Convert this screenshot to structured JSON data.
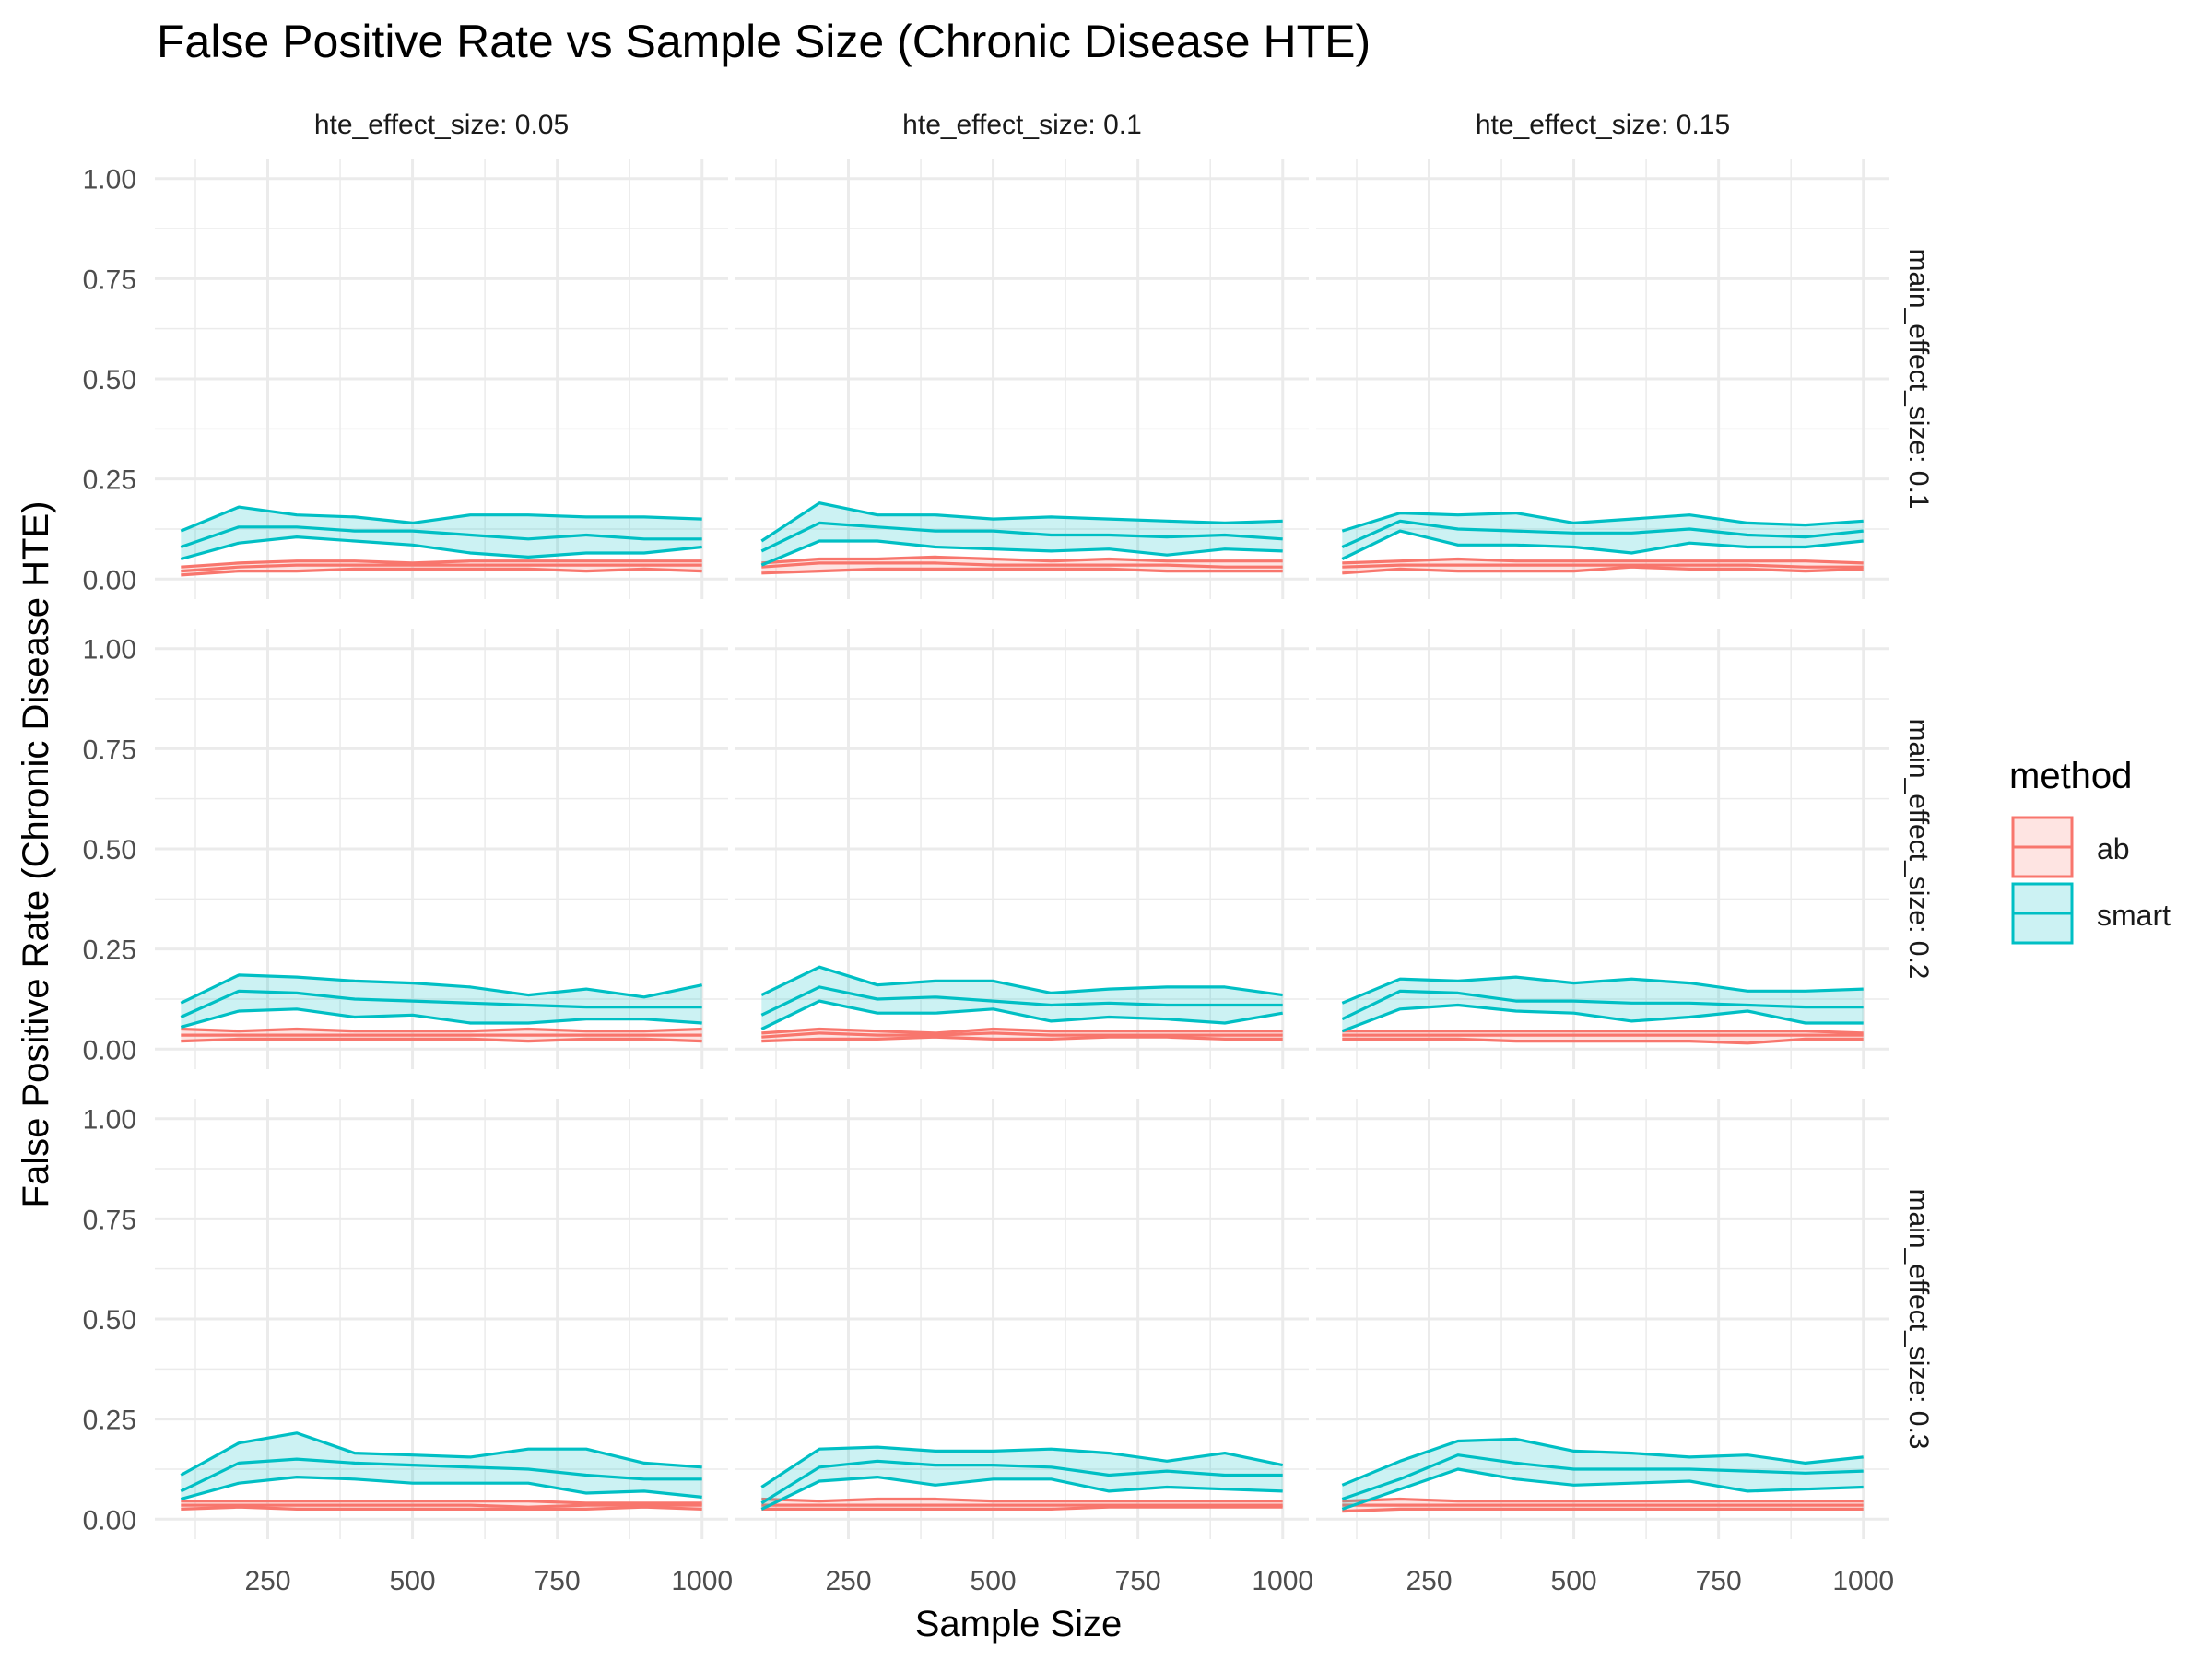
{
  "chart_data": {
    "type": "line",
    "title": "False Positive Rate vs Sample Size (Chronic Disease HTE)",
    "xlabel": "Sample Size",
    "ylabel": "False Positive Rate (Chronic Disease HTE)",
    "xlim": [
      55,
      1045
    ],
    "ylim": [
      -0.05,
      1.05
    ],
    "x_ticks": [
      250,
      500,
      750,
      1000
    ],
    "x_tick_labels": [
      "250",
      "500",
      "750",
      "1000"
    ],
    "y_ticks": [
      0,
      0.25,
      0.5,
      0.75,
      1
    ],
    "y_tick_labels": [
      "0.00",
      "0.25",
      "0.50",
      "0.75",
      "1.00"
    ],
    "grid": true,
    "legend": {
      "title": "method",
      "position": "right",
      "entries": [
        {
          "name": "ab",
          "color": "#F8766D"
        },
        {
          "name": "smart",
          "color": "#00BFC4"
        }
      ]
    },
    "col_facets": [
      "hte_effect_size: 0.05",
      "hte_effect_size: 0.1",
      "hte_effect_size: 0.15"
    ],
    "row_facets": [
      "main_effect_size: 0.1",
      "main_effect_size: 0.2",
      "main_effect_size: 0.3"
    ],
    "x": [
      100,
      200,
      300,
      400,
      500,
      600,
      700,
      800,
      900,
      1000
    ],
    "panels": [
      {
        "row": 0,
        "col": 0,
        "series": [
          {
            "name": "smart",
            "upper": [
              0.12,
              0.18,
              0.16,
              0.155,
              0.14,
              0.16,
              0.16,
              0.155,
              0.155,
              0.15
            ],
            "mean": [
              0.08,
              0.13,
              0.13,
              0.12,
              0.12,
              0.11,
              0.1,
              0.11,
              0.1,
              0.1
            ],
            "lower": [
              0.05,
              0.09,
              0.105,
              0.095,
              0.085,
              0.065,
              0.055,
              0.065,
              0.065,
              0.08
            ]
          },
          {
            "name": "ab",
            "upper": [
              0.03,
              0.04,
              0.045,
              0.045,
              0.04,
              0.045,
              0.045,
              0.045,
              0.045,
              0.045
            ],
            "mean": [
              0.02,
              0.03,
              0.035,
              0.035,
              0.035,
              0.035,
              0.035,
              0.035,
              0.035,
              0.035
            ],
            "lower": [
              0.01,
              0.02,
              0.02,
              0.025,
              0.025,
              0.025,
              0.025,
              0.02,
              0.025,
              0.02
            ]
          }
        ]
      },
      {
        "row": 0,
        "col": 1,
        "series": [
          {
            "name": "smart",
            "upper": [
              0.095,
              0.19,
              0.16,
              0.16,
              0.15,
              0.155,
              0.15,
              0.145,
              0.14,
              0.145
            ],
            "mean": [
              0.07,
              0.14,
              0.13,
              0.12,
              0.12,
              0.11,
              0.11,
              0.105,
              0.11,
              0.1
            ],
            "lower": [
              0.035,
              0.095,
              0.095,
              0.08,
              0.075,
              0.07,
              0.075,
              0.06,
              0.075,
              0.07
            ]
          },
          {
            "name": "ab",
            "upper": [
              0.04,
              0.05,
              0.05,
              0.055,
              0.05,
              0.045,
              0.05,
              0.045,
              0.045,
              0.045
            ],
            "mean": [
              0.03,
              0.04,
              0.04,
              0.04,
              0.035,
              0.035,
              0.035,
              0.035,
              0.03,
              0.03
            ],
            "lower": [
              0.015,
              0.02,
              0.025,
              0.025,
              0.025,
              0.025,
              0.025,
              0.02,
              0.02,
              0.02
            ]
          }
        ]
      },
      {
        "row": 0,
        "col": 2,
        "series": [
          {
            "name": "smart",
            "upper": [
              0.12,
              0.165,
              0.16,
              0.165,
              0.14,
              0.15,
              0.16,
              0.14,
              0.135,
              0.145
            ],
            "mean": [
              0.08,
              0.145,
              0.125,
              0.12,
              0.115,
              0.115,
              0.125,
              0.11,
              0.105,
              0.12
            ],
            "lower": [
              0.05,
              0.12,
              0.085,
              0.085,
              0.08,
              0.065,
              0.09,
              0.08,
              0.08,
              0.095
            ]
          },
          {
            "name": "ab",
            "upper": [
              0.04,
              0.045,
              0.05,
              0.045,
              0.045,
              0.045,
              0.045,
              0.045,
              0.045,
              0.04
            ],
            "mean": [
              0.03,
              0.035,
              0.035,
              0.035,
              0.035,
              0.035,
              0.035,
              0.035,
              0.03,
              0.03
            ],
            "lower": [
              0.015,
              0.025,
              0.02,
              0.02,
              0.02,
              0.03,
              0.025,
              0.025,
              0.02,
              0.025
            ]
          }
        ]
      },
      {
        "row": 1,
        "col": 0,
        "series": [
          {
            "name": "smart",
            "upper": [
              0.115,
              0.185,
              0.18,
              0.17,
              0.165,
              0.155,
              0.135,
              0.15,
              0.13,
              0.16
            ],
            "mean": [
              0.08,
              0.145,
              0.14,
              0.125,
              0.12,
              0.115,
              0.11,
              0.105,
              0.105,
              0.105
            ],
            "lower": [
              0.055,
              0.095,
              0.1,
              0.08,
              0.085,
              0.065,
              0.065,
              0.075,
              0.075,
              0.065
            ]
          },
          {
            "name": "ab",
            "upper": [
              0.05,
              0.045,
              0.05,
              0.045,
              0.045,
              0.045,
              0.05,
              0.045,
              0.045,
              0.05
            ],
            "mean": [
              0.035,
              0.035,
              0.035,
              0.035,
              0.035,
              0.035,
              0.035,
              0.035,
              0.035,
              0.035
            ],
            "lower": [
              0.02,
              0.025,
              0.025,
              0.025,
              0.025,
              0.025,
              0.02,
              0.025,
              0.025,
              0.02
            ]
          }
        ]
      },
      {
        "row": 1,
        "col": 1,
        "series": [
          {
            "name": "smart",
            "upper": [
              0.135,
              0.205,
              0.16,
              0.17,
              0.17,
              0.14,
              0.15,
              0.155,
              0.155,
              0.135
            ],
            "mean": [
              0.085,
              0.155,
              0.125,
              0.13,
              0.12,
              0.11,
              0.115,
              0.11,
              0.11,
              0.11
            ],
            "lower": [
              0.05,
              0.12,
              0.09,
              0.09,
              0.1,
              0.07,
              0.08,
              0.075,
              0.065,
              0.09
            ]
          },
          {
            "name": "ab",
            "upper": [
              0.04,
              0.05,
              0.045,
              0.04,
              0.05,
              0.045,
              0.045,
              0.045,
              0.045,
              0.045
            ],
            "mean": [
              0.03,
              0.04,
              0.035,
              0.035,
              0.04,
              0.035,
              0.035,
              0.035,
              0.035,
              0.035
            ],
            "lower": [
              0.02,
              0.025,
              0.025,
              0.03,
              0.025,
              0.025,
              0.03,
              0.03,
              0.025,
              0.025
            ]
          }
        ]
      },
      {
        "row": 1,
        "col": 2,
        "series": [
          {
            "name": "smart",
            "upper": [
              0.115,
              0.175,
              0.17,
              0.18,
              0.165,
              0.175,
              0.165,
              0.145,
              0.145,
              0.15
            ],
            "mean": [
              0.075,
              0.145,
              0.14,
              0.12,
              0.12,
              0.115,
              0.115,
              0.11,
              0.105,
              0.105
            ],
            "lower": [
              0.045,
              0.1,
              0.11,
              0.095,
              0.09,
              0.07,
              0.08,
              0.095,
              0.065,
              0.065
            ]
          },
          {
            "name": "ab",
            "upper": [
              0.045,
              0.045,
              0.045,
              0.045,
              0.045,
              0.045,
              0.045,
              0.045,
              0.045,
              0.04
            ],
            "mean": [
              0.035,
              0.035,
              0.035,
              0.035,
              0.035,
              0.035,
              0.035,
              0.035,
              0.035,
              0.035
            ],
            "lower": [
              0.025,
              0.025,
              0.025,
              0.02,
              0.02,
              0.02,
              0.02,
              0.015,
              0.025,
              0.025
            ]
          }
        ]
      },
      {
        "row": 2,
        "col": 0,
        "series": [
          {
            "name": "smart",
            "upper": [
              0.11,
              0.19,
              0.215,
              0.165,
              0.16,
              0.155,
              0.175,
              0.175,
              0.14,
              0.13
            ],
            "mean": [
              0.07,
              0.14,
              0.15,
              0.14,
              0.135,
              0.13,
              0.125,
              0.11,
              0.1,
              0.1
            ],
            "lower": [
              0.05,
              0.09,
              0.105,
              0.1,
              0.09,
              0.09,
              0.09,
              0.065,
              0.07,
              0.055
            ]
          },
          {
            "name": "ab",
            "upper": [
              0.045,
              0.045,
              0.045,
              0.045,
              0.045,
              0.045,
              0.045,
              0.04,
              0.04,
              0.04
            ],
            "mean": [
              0.035,
              0.035,
              0.035,
              0.035,
              0.035,
              0.035,
              0.03,
              0.035,
              0.035,
              0.035
            ],
            "lower": [
              0.025,
              0.03,
              0.025,
              0.025,
              0.025,
              0.025,
              0.025,
              0.025,
              0.03,
              0.025
            ]
          }
        ]
      },
      {
        "row": 2,
        "col": 1,
        "series": [
          {
            "name": "smart",
            "upper": [
              0.08,
              0.175,
              0.18,
              0.17,
              0.17,
              0.175,
              0.165,
              0.145,
              0.165,
              0.135
            ],
            "mean": [
              0.04,
              0.13,
              0.145,
              0.135,
              0.135,
              0.13,
              0.11,
              0.12,
              0.11,
              0.11
            ],
            "lower": [
              0.025,
              0.095,
              0.105,
              0.085,
              0.1,
              0.1,
              0.07,
              0.08,
              0.075,
              0.07
            ]
          },
          {
            "name": "ab",
            "upper": [
              0.05,
              0.045,
              0.05,
              0.05,
              0.045,
              0.045,
              0.045,
              0.045,
              0.045,
              0.045
            ],
            "mean": [
              0.035,
              0.035,
              0.035,
              0.035,
              0.035,
              0.035,
              0.035,
              0.035,
              0.035,
              0.035
            ],
            "lower": [
              0.025,
              0.025,
              0.025,
              0.025,
              0.025,
              0.025,
              0.03,
              0.03,
              0.03,
              0.03
            ]
          }
        ]
      },
      {
        "row": 2,
        "col": 2,
        "series": [
          {
            "name": "smart",
            "upper": [
              0.085,
              0.145,
              0.195,
              0.2,
              0.17,
              0.165,
              0.155,
              0.16,
              0.14,
              0.155
            ],
            "mean": [
              0.05,
              0.1,
              0.16,
              0.14,
              0.125,
              0.125,
              0.125,
              0.12,
              0.115,
              0.12
            ],
            "lower": [
              0.025,
              0.075,
              0.125,
              0.1,
              0.085,
              0.09,
              0.095,
              0.07,
              0.075,
              0.08
            ]
          },
          {
            "name": "ab",
            "upper": [
              0.045,
              0.05,
              0.045,
              0.045,
              0.045,
              0.045,
              0.045,
              0.045,
              0.045,
              0.045
            ],
            "mean": [
              0.035,
              0.035,
              0.035,
              0.035,
              0.035,
              0.035,
              0.035,
              0.035,
              0.035,
              0.035
            ],
            "lower": [
              0.02,
              0.025,
              0.025,
              0.025,
              0.025,
              0.025,
              0.025,
              0.025,
              0.025,
              0.025
            ]
          }
        ]
      }
    ]
  }
}
